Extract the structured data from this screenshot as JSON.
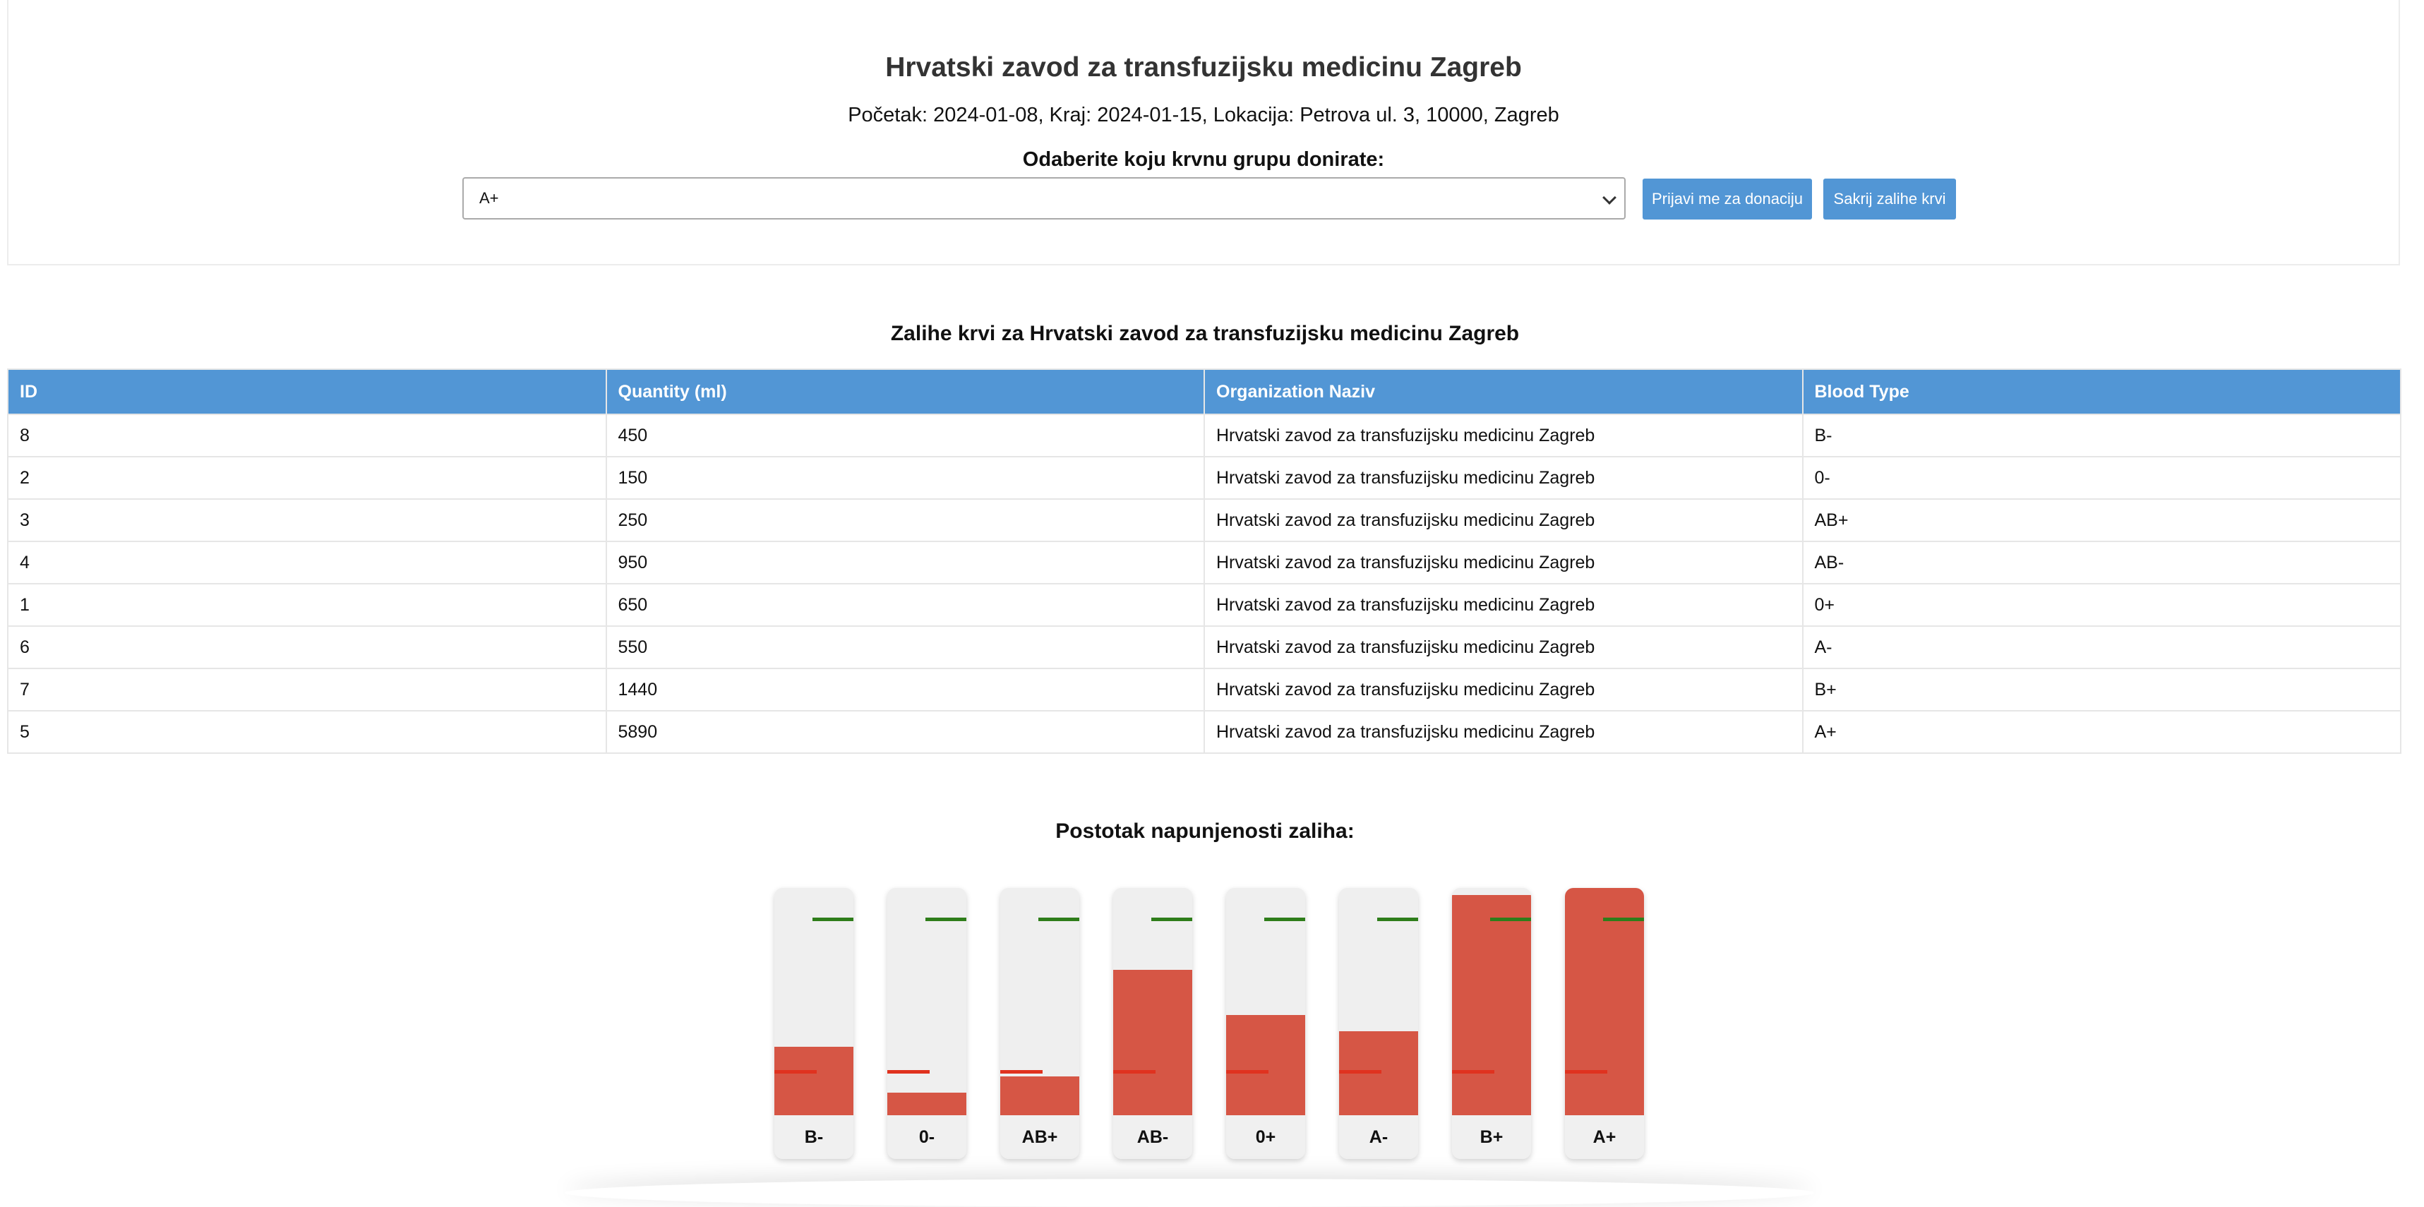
{
  "header": {
    "title": "Hrvatski zavod za transfuzijsku medicinu Zagreb",
    "event_info": "Početak: 2024-01-08, Kraj: 2024-01-15, Lokacija: Petrova ul. 3, 10000, Zagreb",
    "select_label": "Odaberite koju krvnu grupu donirate:",
    "selected_blood_type": "A+",
    "register_button": "Prijavi me za donaciju",
    "hide_stock_button": "Sakrij zalihe krvi"
  },
  "stock": {
    "title": "Zalihe krvi za Hrvatski zavod za transfuzijsku medicinu Zagreb",
    "columns": [
      "ID",
      "Quantity (ml)",
      "Organization Naziv",
      "Blood Type"
    ],
    "rows": [
      [
        "8",
        "450",
        "Hrvatski zavod za transfuzijsku medicinu Zagreb",
        "B-"
      ],
      [
        "2",
        "150",
        "Hrvatski zavod za transfuzijsku medicinu Zagreb",
        "0-"
      ],
      [
        "3",
        "250",
        "Hrvatski zavod za transfuzijsku medicinu Zagreb",
        "AB+"
      ],
      [
        "4",
        "950",
        "Hrvatski zavod za transfuzijsku medicinu Zagreb",
        "AB-"
      ],
      [
        "1",
        "650",
        "Hrvatski zavod za transfuzijsku medicinu Zagreb",
        "0+"
      ],
      [
        "6",
        "550",
        "Hrvatski zavod za transfuzijsku medicinu Zagreb",
        "A-"
      ],
      [
        "7",
        "1440",
        "Hrvatski zavod za transfuzijsku medicinu Zagreb",
        "B+"
      ],
      [
        "5",
        "5890",
        "Hrvatski zavod za transfuzijsku medicinu Zagreb",
        "A+"
      ]
    ]
  },
  "fill_levels": {
    "title": "Postotak napunjenosti zaliha:",
    "colors": {
      "fill": "#d65645",
      "max_line": "#2e7d1a",
      "min_line": "#e0321f",
      "tank": "#efefef"
    },
    "min_threshold_pct": 20,
    "max_threshold_pct": 87,
    "gauges": [
      {
        "label": "B-",
        "fill_pct": 30
      },
      {
        "label": "0-",
        "fill_pct": 10
      },
      {
        "label": "AB+",
        "fill_pct": 17
      },
      {
        "label": "AB-",
        "fill_pct": 64
      },
      {
        "label": "0+",
        "fill_pct": 44
      },
      {
        "label": "A-",
        "fill_pct": 37
      },
      {
        "label": "B+",
        "fill_pct": 97
      },
      {
        "label": "A+",
        "fill_pct": 100
      }
    ]
  }
}
